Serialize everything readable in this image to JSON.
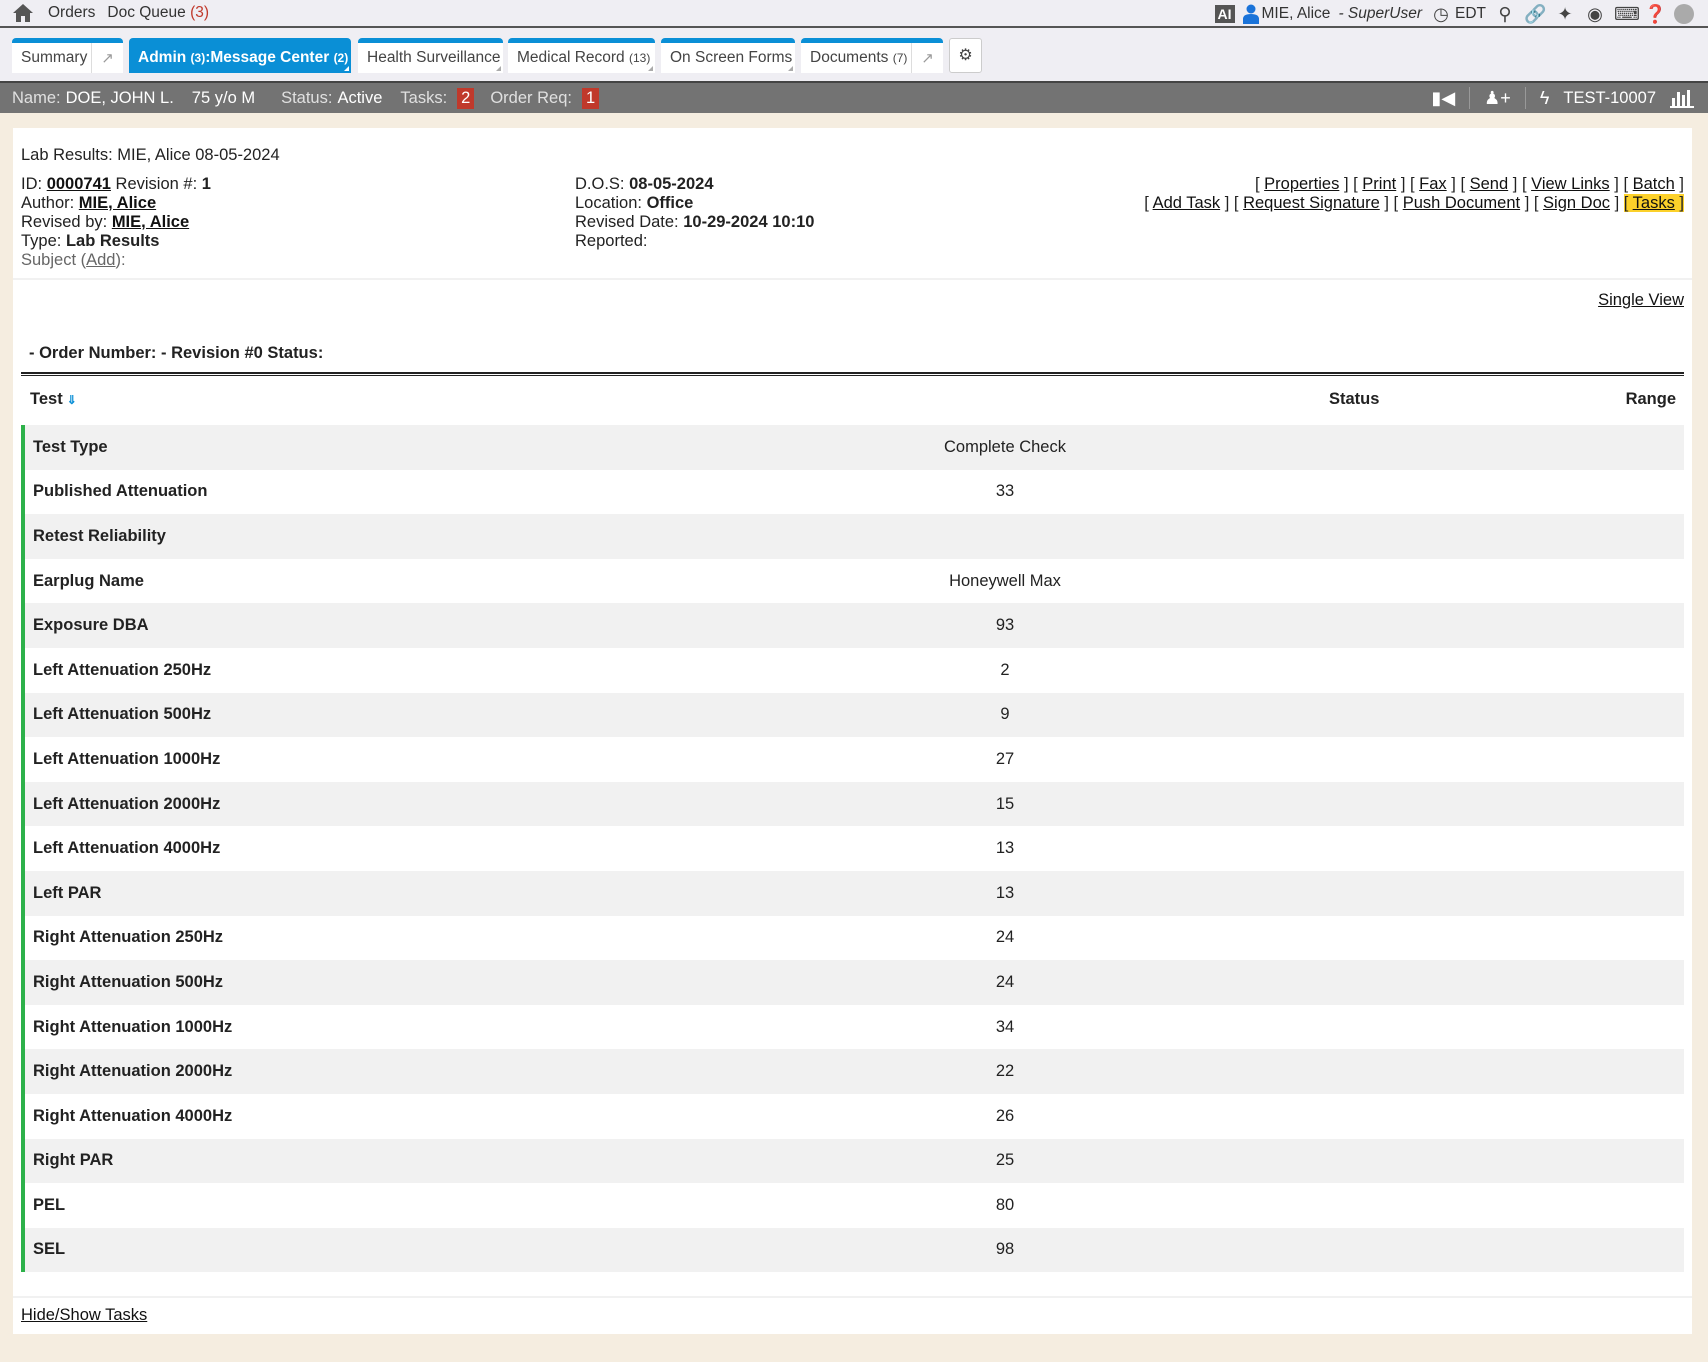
{
  "topbar": {
    "nav": [
      {
        "label": "Orders"
      },
      {
        "label": "Doc Queue",
        "count": "(3)"
      }
    ],
    "ai_label": "AI",
    "user": "MIE, Alice",
    "role": "- SuperUser",
    "timezone": "EDT",
    "icons": [
      "home-icon",
      "user-icon",
      "clock-icon",
      "search-icon",
      "link-icon",
      "magic-wand-icon",
      "globe-icon",
      "keyboard-icon",
      "help-icon",
      "status-dot-icon"
    ]
  },
  "tabs": [
    {
      "label": "Summary",
      "active": false
    },
    {
      "label": "Admin",
      "count": "(3)",
      "label2": ":Message Center",
      "count2": "(2)",
      "active": true
    },
    {
      "label": "Health Surveillance",
      "active": false
    },
    {
      "label": "Medical Record",
      "count": "(13)",
      "active": false
    },
    {
      "label": "On Screen Forms",
      "active": false
    },
    {
      "label": "Documents",
      "count": "(7)",
      "active": false
    }
  ],
  "patient": {
    "name_label": "Name:",
    "name": "DOE, JOHN L.",
    "age": "75 y/o M",
    "status_label": "Status:",
    "status": "Active",
    "tasks_label": "Tasks:",
    "tasks": "2",
    "order_label": "Order Req:",
    "order": "1",
    "chart_id": "TEST-10007"
  },
  "doc": {
    "title": "Lab Results: MIE, Alice 08-05-2024",
    "id_label": "ID:",
    "id": "0000741",
    "revision_label": "Revision #:",
    "revision": "1",
    "author_label": "Author:",
    "author": "MIE, Alice",
    "revised_by_label": "Revised by:",
    "revised_by": "MIE, Alice",
    "type_label": "Type:",
    "type": "Lab Results",
    "subject_label": "Subject (",
    "subject_add": "Add",
    "subject_end": "):",
    "dos_label": "D.O.S:",
    "dos": "08-05-2024",
    "location_label": "Location:",
    "location": "Office",
    "revised_date_label": "Revised Date:",
    "revised_date": "10-29-2024 10:10",
    "reported_label": "Reported:"
  },
  "actions": {
    "row1": [
      "Properties",
      "Print",
      "Fax",
      "Send",
      "View Links",
      "Batch"
    ],
    "row2": [
      "Add Task",
      "Request Signature",
      "Push Document",
      "Sign Doc",
      "Tasks"
    ],
    "highlight_color": "#fcd12a"
  },
  "single_view": "Single View",
  "order_line": "- Order Number: - Revision #0 Status:",
  "table": {
    "headers": {
      "test": "Test",
      "status": "Status",
      "range": "Range"
    },
    "rows": [
      {
        "test": "Test Type",
        "value": "Complete Check"
      },
      {
        "test": "Published Attenuation",
        "value": "33"
      },
      {
        "test": "Retest Reliability",
        "value": ""
      },
      {
        "test": "Earplug Name",
        "value": "Honeywell Max"
      },
      {
        "test": "Exposure DBA",
        "value": "93"
      },
      {
        "test": "Left Attenuation 250Hz",
        "value": "2"
      },
      {
        "test": "Left Attenuation 500Hz",
        "value": "9"
      },
      {
        "test": "Left Attenuation 1000Hz",
        "value": "27"
      },
      {
        "test": "Left Attenuation 2000Hz",
        "value": "15"
      },
      {
        "test": "Left Attenuation 4000Hz",
        "value": "13"
      },
      {
        "test": "Left PAR",
        "value": "13"
      },
      {
        "test": "Right Attenuation 250Hz",
        "value": "24"
      },
      {
        "test": "Right Attenuation 500Hz",
        "value": "24"
      },
      {
        "test": "Right Attenuation 1000Hz",
        "value": "34"
      },
      {
        "test": "Right Attenuation 2000Hz",
        "value": "22"
      },
      {
        "test": "Right Attenuation 4000Hz",
        "value": "26"
      },
      {
        "test": "Right PAR",
        "value": "25"
      },
      {
        "test": "PEL",
        "value": "80"
      },
      {
        "test": "SEL",
        "value": "98"
      }
    ]
  },
  "hide_show": "Hide/Show Tasks",
  "colors": {
    "accent": "#0a8fd6",
    "row_marker": "#2db14a",
    "badge": "#c0392b",
    "patient_bar": "#737373"
  }
}
